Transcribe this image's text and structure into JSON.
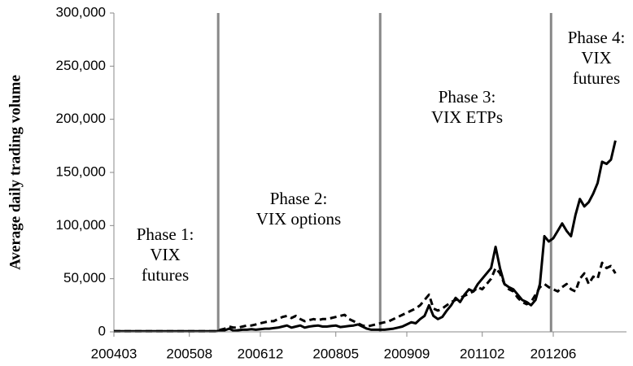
{
  "chart_data": {
    "type": "line",
    "y_label": "Average daily trading volume",
    "categories": [
      "200403",
      null,
      null,
      null,
      null,
      null,
      null,
      null,
      null,
      null,
      null,
      null,
      null,
      null,
      null,
      null,
      null,
      "200508",
      null,
      null,
      null,
      null,
      null,
      null,
      null,
      null,
      null,
      null,
      null,
      null,
      null,
      null,
      null,
      "200612",
      null,
      null,
      null,
      null,
      null,
      null,
      null,
      null,
      null,
      null,
      null,
      null,
      null,
      null,
      null,
      null,
      "200805",
      null,
      null,
      null,
      null,
      null,
      null,
      null,
      null,
      null,
      null,
      null,
      null,
      null,
      null,
      null,
      "200909",
      null,
      null,
      null,
      null,
      null,
      null,
      null,
      null,
      null,
      null,
      null,
      null,
      null,
      null,
      null,
      null,
      "201102",
      null,
      null,
      null,
      null,
      null,
      null,
      null,
      null,
      null,
      null,
      null,
      null,
      null,
      null,
      null,
      "201206",
      null,
      null,
      null,
      null,
      null,
      null,
      null,
      null,
      null,
      null,
      null,
      null,
      null,
      null
    ],
    "series": [
      {
        "color": "#000000",
        "dash": false,
        "values": [
          500,
          500,
          500,
          500,
          500,
          500,
          500,
          500,
          500,
          500,
          500,
          500,
          500,
          500,
          500,
          500,
          500,
          500,
          500,
          500,
          500,
          500,
          500,
          500,
          1000,
          1500,
          3000,
          1000,
          1500,
          2000,
          2000,
          2500,
          2000,
          2500,
          3000,
          3000,
          3500,
          4000,
          5000,
          6000,
          4000,
          5000,
          6000,
          4000,
          5000,
          5500,
          6000,
          5000,
          5000,
          5500,
          6000,
          4500,
          5000,
          5500,
          6000,
          7000,
          5000,
          3000,
          2000,
          2000,
          2000,
          2000,
          2500,
          3000,
          4000,
          5000,
          7000,
          9000,
          8000,
          12000,
          15000,
          25000,
          15000,
          12000,
          14000,
          20000,
          25000,
          32000,
          28000,
          35000,
          40000,
          38000,
          45000,
          50000,
          55000,
          60000,
          80000,
          60000,
          45000,
          42000,
          40000,
          35000,
          30000,
          28000,
          25000,
          30000,
          45000,
          90000,
          85000,
          88000,
          95000,
          102000,
          95000,
          90000,
          110000,
          125000,
          118000,
          122000,
          130000,
          140000,
          160000,
          158000,
          162000,
          180000
        ]
      },
      {
        "color": "#000000",
        "dash": true,
        "values": [
          500,
          500,
          500,
          500,
          500,
          500,
          500,
          500,
          500,
          500,
          500,
          500,
          500,
          500,
          500,
          500,
          500,
          500,
          500,
          500,
          500,
          500,
          500,
          500,
          2000,
          3000,
          5000,
          4000,
          4000,
          5000,
          6000,
          6000,
          7000,
          8000,
          9000,
          10000,
          10000,
          12000,
          14000,
          15000,
          13000,
          15000,
          12000,
          10000,
          11000,
          12000,
          11000,
          12000,
          12000,
          13000,
          14000,
          15000,
          16000,
          12000,
          10000,
          8000,
          6000,
          5000,
          6000,
          7000,
          8000,
          9000,
          10000,
          12000,
          14000,
          16000,
          18000,
          20000,
          22000,
          25000,
          30000,
          35000,
          22000,
          20000,
          22000,
          25000,
          28000,
          30000,
          32000,
          34000,
          36000,
          38000,
          42000,
          40000,
          45000,
          50000,
          60000,
          55000,
          45000,
          40000,
          38000,
          32000,
          28000,
          26000,
          28000,
          35000,
          42000,
          45000,
          42000,
          40000,
          38000,
          42000,
          45000,
          40000,
          38000,
          50000,
          55000,
          45000,
          52000,
          50000,
          65000,
          60000,
          62000,
          55000
        ]
      }
    ],
    "ylim": [
      0,
      300000
    ],
    "yticks": [
      0,
      {
        "value": 50000,
        "label": "50,000"
      },
      {
        "value": 100000,
        "label": "100,000"
      },
      {
        "value": 150000,
        "label": "150,000"
      },
      {
        "value": 200000,
        "label": "200,000"
      },
      {
        "value": 250000,
        "label": "250,000"
      },
      {
        "value": 300000,
        "label": "300,000"
      }
    ],
    "phase_dividers": [
      23.5,
      60,
      98.5
    ],
    "annotations": [
      {
        "lines": [
          "Phase 1:",
          "VIX",
          "futures"
        ]
      },
      {
        "lines": [
          "Phase 2:",
          "VIX options"
        ]
      },
      {
        "lines": [
          "Phase 3:",
          "VIX ETPs"
        ]
      },
      {
        "lines": [
          "Phase 4:",
          "VIX",
          "futures"
        ]
      }
    ]
  }
}
